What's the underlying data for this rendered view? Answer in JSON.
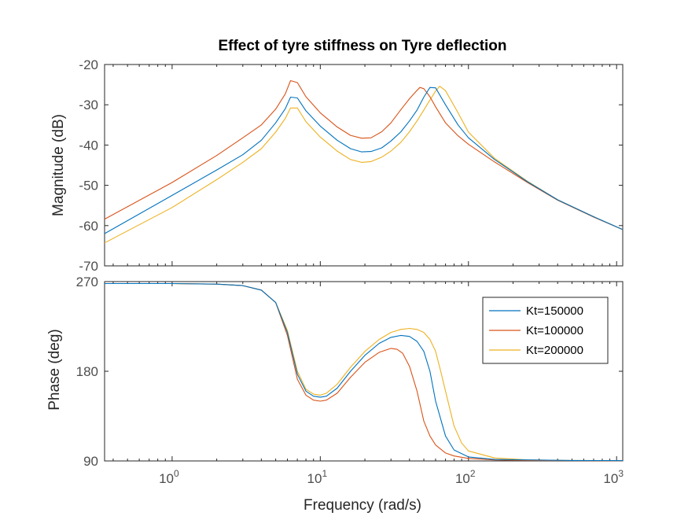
{
  "chart_data": {
    "type": "line",
    "subtype": "bode",
    "title": "Effect of tyre stiffness on Tyre deflection",
    "xlabel": "Frequency  (rad/s)",
    "xscale": "log",
    "xlim": [
      0.35,
      1100
    ],
    "xticks": [
      {
        "value": 1,
        "base": "10",
        "exp": "0"
      },
      {
        "value": 10,
        "base": "10",
        "exp": "1"
      },
      {
        "value": 100,
        "base": "10",
        "exp": "2"
      },
      {
        "value": 1000,
        "base": "10",
        "exp": "3"
      }
    ],
    "legend": {
      "position": "right",
      "entries": [
        "Kt=150000",
        "Kt=100000",
        "Kt=200000"
      ]
    },
    "colors": {
      "Kt=150000": "#0072BD",
      "Kt=100000": "#D95319",
      "Kt=200000": "#EDB120"
    },
    "magnitude": {
      "ylabel": "Magnitude (dB)",
      "ylim": [
        -70,
        -20
      ],
      "yticks": [
        -20,
        -30,
        -40,
        -50,
        -60,
        -70
      ],
      "series": [
        {
          "name": "Kt=150000",
          "x": [
            0.35,
            1,
            2,
            3,
            4,
            5,
            5.8,
            6.3,
            7,
            8,
            10,
            13,
            16,
            19,
            22,
            26,
            30,
            35,
            40,
            45,
            50,
            55,
            60,
            70,
            85,
            100,
            150,
            250,
            400,
            700,
            1100
          ],
          "y": [
            -62,
            -52.5,
            -46.2,
            -42.4,
            -38.8,
            -34.5,
            -31,
            -28.1,
            -28.3,
            -31.5,
            -35.3,
            -38.8,
            -40.9,
            -41.7,
            -41.6,
            -40.7,
            -39,
            -36.7,
            -34,
            -31.3,
            -28.1,
            -25.7,
            -25.8,
            -30,
            -35,
            -38.2,
            -43.6,
            -49.1,
            -53.6,
            -57.8,
            -61
          ]
        },
        {
          "name": "Kt=100000",
          "x": [
            0.35,
            1,
            2,
            3,
            4,
            5,
            5.8,
            6.3,
            7,
            8,
            10,
            13,
            16,
            19,
            22,
            26,
            30,
            35,
            40,
            45,
            47,
            50,
            55,
            60,
            70,
            85,
            100,
            150,
            250,
            400,
            700,
            1100
          ],
          "y": [
            -58.4,
            -49.3,
            -42.6,
            -38.2,
            -35,
            -31.1,
            -27.3,
            -24,
            -24.5,
            -28,
            -32,
            -35.5,
            -37.6,
            -38.3,
            -38.2,
            -36.7,
            -34.5,
            -31.2,
            -28.5,
            -26.4,
            -25.7,
            -26,
            -28,
            -30.5,
            -34.5,
            -37.7,
            -39.8,
            -44.2,
            -49.3,
            -53.7,
            -57.9,
            -61
          ]
        },
        {
          "name": "Kt=200000",
          "x": [
            0.35,
            1,
            2,
            3,
            4,
            5,
            5.8,
            6.3,
            7,
            8,
            10,
            13,
            16,
            19,
            22,
            26,
            30,
            35,
            40,
            45,
            50,
            55,
            60,
            64,
            70,
            85,
            100,
            150,
            250,
            400,
            700,
            1100
          ],
          "y": [
            -64.3,
            -55.5,
            -48.6,
            -44.3,
            -40.9,
            -36.8,
            -33.4,
            -30.8,
            -30.8,
            -34.2,
            -38,
            -41.5,
            -43.6,
            -44.3,
            -44.1,
            -43,
            -41.5,
            -39.3,
            -36.7,
            -34,
            -31.3,
            -28.8,
            -26.6,
            -25.4,
            -26.5,
            -32,
            -36.8,
            -43.3,
            -49,
            -53.6,
            -57.8,
            -61
          ]
        }
      ]
    },
    "phase": {
      "ylabel": "Phase (deg)",
      "ylim": [
        90,
        270
      ],
      "yticks": [
        270,
        180,
        90
      ],
      "series": [
        {
          "name": "Kt=150000",
          "x": [
            0.35,
            1,
            2,
            3,
            4,
            5,
            6,
            7,
            8,
            9,
            10,
            11,
            13,
            16,
            20,
            25,
            30,
            35,
            40,
            45,
            50,
            55,
            60,
            70,
            80,
            100,
            150,
            250,
            500,
            1100
          ],
          "y": [
            268,
            268,
            267.5,
            266,
            261.5,
            249,
            219,
            177,
            160,
            155,
            154,
            155,
            163,
            180,
            196,
            208,
            214,
            216,
            215,
            210,
            200,
            180,
            150,
            115,
            101,
            94,
            91.5,
            91,
            90.5,
            90.3
          ]
        },
        {
          "name": "Kt=100000",
          "x": [
            0.35,
            1,
            2,
            3,
            4,
            5,
            6,
            7,
            8,
            9,
            10,
            11,
            13,
            16,
            20,
            25,
            30,
            33,
            36,
            40,
            45,
            50,
            55,
            60,
            70,
            80,
            100,
            150,
            250,
            500,
            1100
          ],
          "y": [
            268,
            268,
            267.5,
            266,
            261.5,
            249,
            216,
            172,
            156,
            151,
            150,
            151,
            158,
            174,
            189,
            199,
            203,
            202,
            198,
            185,
            160,
            130,
            115,
            106,
            98,
            95,
            92.5,
            91,
            90.5,
            90.3,
            90.2
          ]
        },
        {
          "name": "Kt=200000",
          "x": [
            0.35,
            1,
            2,
            3,
            4,
            5,
            6,
            7,
            8,
            9,
            10,
            11,
            13,
            16,
            20,
            25,
            30,
            35,
            40,
            45,
            50,
            55,
            60,
            65,
            70,
            80,
            90,
            100,
            150,
            250,
            500,
            1100
          ],
          "y": [
            268,
            268,
            267.5,
            266,
            261.5,
            249,
            221,
            180,
            162,
            157,
            156,
            158,
            167,
            184,
            200,
            212,
            219,
            222,
            223,
            222,
            219,
            212,
            200,
            180,
            160,
            125,
            108,
            100,
            93,
            91,
            90.5,
            90.3
          ]
        }
      ]
    }
  }
}
